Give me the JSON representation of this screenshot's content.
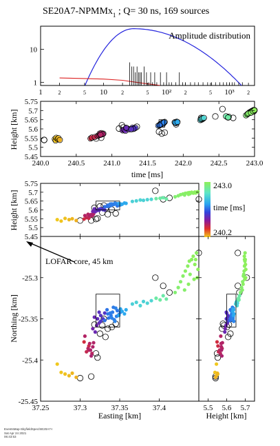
{
  "title_main": "SE20A7-NPMMx",
  "title_sub": "1",
  "title_rest": " ; Q= 30 ns, 169 sources",
  "footer": {
    "line1": "EventsMap-SkyfieldSpec/SE20A7-NPMMx",
    "line2": "Sat Apr 24 2021",
    "line3": "06:43:53"
  },
  "colors": {
    "amp_curve1": "#2222dd",
    "amp_curve2": "#dd2222",
    "marker_edge": "#000000",
    "cbar_top": "#8ef05a",
    "cbar_bottom": "#f0c81e"
  },
  "chart_data": [
    {
      "id": "amplitude",
      "type": "line",
      "title": "Amplitude distribution",
      "x_scale": "log",
      "y_scale": "log",
      "xlim": [
        1,
        2500
      ],
      "ylim": [
        0.8,
        50
      ],
      "x_tick_labels": [
        "1",
        "2",
        "5",
        "10",
        "2",
        "5",
        "10²",
        "2",
        "5",
        "10³",
        "2"
      ],
      "x_tick_values": [
        1,
        2,
        5,
        10,
        20,
        50,
        100,
        200,
        500,
        1000,
        2000
      ],
      "y_tick_labels": [
        "1",
        "10"
      ],
      "y_tick_values": [
        1,
        10
      ],
      "series": [
        {
          "kind": "curve",
          "color": "#2222dd",
          "peak_x": 30,
          "peak_y": 42,
          "start_x": 5,
          "end_x": 1600
        },
        {
          "kind": "curve",
          "color": "#dd2222",
          "x": [
            2,
            5,
            10,
            20,
            40,
            80
          ],
          "y": [
            1.35,
            1.3,
            1.25,
            1.15,
            0.95,
            0.8
          ]
        },
        {
          "kind": "histogram",
          "color": "#000000",
          "x": [
            26,
            28,
            30,
            32,
            34,
            36,
            38,
            40,
            44,
            48,
            52,
            56,
            60,
            65,
            70,
            80,
            90,
            100,
            110,
            120,
            140,
            160,
            180,
            200,
            240,
            280,
            320,
            380,
            450,
            520,
            600,
            700,
            800,
            900,
            1000,
            1100,
            1200,
            1400,
            1600
          ],
          "y": [
            4,
            3,
            3,
            2,
            3,
            2,
            2,
            2,
            3,
            2,
            1,
            2,
            1,
            2,
            1,
            2,
            1,
            2,
            1,
            1,
            1,
            2,
            1,
            1,
            1,
            1,
            1,
            1,
            1,
            1,
            1,
            1,
            1,
            1,
            1,
            1,
            1,
            1,
            1
          ]
        }
      ]
    },
    {
      "id": "height-time",
      "type": "scatter",
      "xlabel": "time [ms]",
      "ylabel": "Height [km]",
      "xlim": [
        240.0,
        243.0
      ],
      "ylim": [
        5.45,
        5.75
      ],
      "x_ticks": [
        "240.0",
        "240.5",
        "241.0",
        "241.5",
        "242.0",
        "242.5",
        "243.0"
      ],
      "y_ticks": [
        "5.45",
        "5.5",
        "5.55",
        "5.6",
        "5.65",
        "5.7",
        "5.75"
      ],
      "highlight_box": {
        "x": [
          241.66,
          241.74
        ],
        "y": [
          5.61,
          5.65
        ]
      }
    },
    {
      "id": "height-easting",
      "type": "scatter",
      "ylabel": "Height [km]",
      "ylim": [
        5.45,
        5.75
      ],
      "y_ticks": [
        "5.45",
        "5.5",
        "5.55",
        "5.6",
        "5.65",
        "5.7",
        "5.75"
      ],
      "highlight_box": {
        "x": [
          37.32,
          37.35
        ],
        "y": [
          5.6,
          5.65
        ]
      }
    },
    {
      "id": "northing-easting",
      "type": "scatter",
      "xlabel": "Easting [km]",
      "ylabel": "Northing [km]",
      "xlim": [
        37.25,
        37.45
      ],
      "ylim": [
        -25.45,
        -25.25
      ],
      "x_ticks": [
        "37.25",
        "37.3",
        "37.35",
        "37.4"
      ],
      "y_ticks": [
        "-25.3",
        "-25.35",
        "-25.4",
        "-25.45"
      ],
      "annotation": "LOFAR core, 45 km",
      "highlight_box": {
        "x": [
          37.32,
          37.35
        ],
        "y": [
          -25.36,
          -25.32
        ]
      }
    },
    {
      "id": "northing-height",
      "type": "scatter",
      "xlabel": "Height [km]",
      "xlim": [
        5.45,
        5.75
      ],
      "x_ticks": [
        "5.5",
        "5.6",
        "5.7"
      ],
      "highlight_box": {
        "x": [
          5.6,
          5.65
        ],
        "y": [
          -25.36,
          -25.32
        ]
      }
    },
    {
      "id": "colorbar",
      "type": "heatmap",
      "label": "time [ms]",
      "range": [
        240.2,
        243.0
      ],
      "tick_labels": [
        "243.0",
        "240.2"
      ]
    }
  ],
  "sources": [
    {
      "t": 240.2,
      "e": 37.271,
      "n": -25.405,
      "h": 5.545
    },
    {
      "t": 240.21,
      "e": 37.276,
      "n": -25.415,
      "h": 5.537
    },
    {
      "t": 240.22,
      "e": 37.281,
      "n": -25.417,
      "h": 5.552
    },
    {
      "t": 240.24,
      "e": 37.286,
      "n": -25.419,
      "h": 5.545
    },
    {
      "t": 240.25,
      "e": 37.29,
      "n": -25.416,
      "h": 5.55
    },
    {
      "t": 240.27,
      "e": 37.295,
      "n": -25.421,
      "h": 5.54
    },
    {
      "t": 240.7,
      "e": 37.305,
      "n": -25.378,
      "h": 5.548
    },
    {
      "t": 240.72,
      "e": 37.311,
      "n": -25.383,
      "h": 5.553
    },
    {
      "t": 240.76,
      "e": 37.308,
      "n": -25.39,
      "h": 5.556
    },
    {
      "t": 240.8,
      "e": 37.311,
      "n": -25.388,
      "h": 5.562
    },
    {
      "t": 240.82,
      "e": 37.315,
      "n": -25.392,
      "h": 5.566
    },
    {
      "t": 240.84,
      "e": 37.312,
      "n": -25.38,
      "h": 5.57
    },
    {
      "t": 240.86,
      "e": 37.316,
      "n": -25.384,
      "h": 5.571
    },
    {
      "t": 240.88,
      "e": 37.314,
      "n": -25.395,
      "h": 5.574
    },
    {
      "t": 240.83,
      "e": 37.31,
      "n": -25.386,
      "h": 5.575
    },
    {
      "t": 240.85,
      "e": 37.317,
      "n": -25.379,
      "h": 5.577
    },
    {
      "t": 240.87,
      "e": 37.313,
      "n": -25.388,
      "h": 5.572
    },
    {
      "t": 240.84,
      "e": 37.306,
      "n": -25.371,
      "h": 5.568
    },
    {
      "t": 241.15,
      "e": 37.316,
      "n": -25.362,
      "h": 5.592
    },
    {
      "t": 241.17,
      "e": 37.321,
      "n": -25.358,
      "h": 5.596
    },
    {
      "t": 241.19,
      "e": 37.319,
      "n": -25.366,
      "h": 5.59
    },
    {
      "t": 241.21,
      "e": 37.324,
      "n": -25.355,
      "h": 5.604
    },
    {
      "t": 241.24,
      "e": 37.322,
      "n": -25.35,
      "h": 5.598
    },
    {
      "t": 241.2,
      "e": 37.318,
      "n": -25.348,
      "h": 5.606
    },
    {
      "t": 241.29,
      "e": 37.326,
      "n": -25.346,
      "h": 5.607
    },
    {
      "t": 241.31,
      "e": 37.329,
      "n": -25.35,
      "h": 5.601
    },
    {
      "t": 241.33,
      "e": 37.326,
      "n": -25.353,
      "h": 5.606
    },
    {
      "t": 241.3,
      "e": 37.331,
      "n": -25.343,
      "h": 5.6
    },
    {
      "t": 241.27,
      "e": 37.324,
      "n": -25.342,
      "h": 5.598
    },
    {
      "t": 241.65,
      "e": 37.331,
      "n": -25.352,
      "h": 5.618
    },
    {
      "t": 241.67,
      "e": 37.336,
      "n": -25.349,
      "h": 5.621
    },
    {
      "t": 241.68,
      "e": 37.335,
      "n": -25.344,
      "h": 5.627
    },
    {
      "t": 241.69,
      "e": 37.339,
      "n": -25.346,
      "h": 5.625
    },
    {
      "t": 241.7,
      "e": 37.341,
      "n": -25.342,
      "h": 5.63
    },
    {
      "t": 241.71,
      "e": 37.343,
      "n": -25.351,
      "h": 5.632
    },
    {
      "t": 241.72,
      "e": 37.346,
      "n": -25.347,
      "h": 5.635
    },
    {
      "t": 241.73,
      "e": 37.34,
      "n": -25.349,
      "h": 5.634
    },
    {
      "t": 241.74,
      "e": 37.344,
      "n": -25.353,
      "h": 5.638
    },
    {
      "t": 241.68,
      "e": 37.347,
      "n": -25.34,
      "h": 5.623
    },
    {
      "t": 241.69,
      "e": 37.349,
      "n": -25.345,
      "h": 5.627
    },
    {
      "t": 241.71,
      "e": 37.338,
      "n": -25.343,
      "h": 5.633
    },
    {
      "t": 241.7,
      "e": 37.342,
      "n": -25.336,
      "h": 5.631
    },
    {
      "t": 241.72,
      "e": 37.351,
      "n": -25.342,
      "h": 5.629
    },
    {
      "t": 241.73,
      "e": 37.345,
      "n": -25.337,
      "h": 5.636
    },
    {
      "t": 241.67,
      "e": 37.334,
      "n": -25.339,
      "h": 5.62
    },
    {
      "t": 241.88,
      "e": 37.349,
      "n": -25.346,
      "h": 5.636
    },
    {
      "t": 241.9,
      "e": 37.353,
      "n": -25.341,
      "h": 5.632
    },
    {
      "t": 241.91,
      "e": 37.356,
      "n": -25.344,
      "h": 5.639
    },
    {
      "t": 241.89,
      "e": 37.351,
      "n": -25.338,
      "h": 5.634
    },
    {
      "t": 241.92,
      "e": 37.358,
      "n": -25.339,
      "h": 5.637
    },
    {
      "t": 242.24,
      "e": 37.366,
      "n": -25.332,
      "h": 5.648
    },
    {
      "t": 242.26,
      "e": 37.371,
      "n": -25.33,
      "h": 5.651
    },
    {
      "t": 242.28,
      "e": 37.376,
      "n": -25.334,
      "h": 5.656
    },
    {
      "t": 242.25,
      "e": 37.38,
      "n": -25.329,
      "h": 5.654
    },
    {
      "t": 242.27,
      "e": 37.385,
      "n": -25.331,
      "h": 5.658
    },
    {
      "t": 242.29,
      "e": 37.39,
      "n": -25.328,
      "h": 5.66
    },
    {
      "t": 242.62,
      "e": 37.396,
      "n": -25.325,
      "h": 5.664
    },
    {
      "t": 242.64,
      "e": 37.401,
      "n": -25.327,
      "h": 5.666
    },
    {
      "t": 242.6,
      "e": 37.405,
      "n": -25.322,
      "h": 5.669
    },
    {
      "t": 242.63,
      "e": 37.409,
      "n": -25.326,
      "h": 5.662
    },
    {
      "t": 242.88,
      "e": 37.42,
      "n": -25.318,
      "h": 5.674
    },
    {
      "t": 242.9,
      "e": 37.424,
      "n": -25.312,
      "h": 5.68
    },
    {
      "t": 242.92,
      "e": 37.427,
      "n": -25.305,
      "h": 5.686
    },
    {
      "t": 242.93,
      "e": 37.43,
      "n": -25.298,
      "h": 5.69
    },
    {
      "t": 242.95,
      "e": 37.433,
      "n": -25.292,
      "h": 5.694
    },
    {
      "t": 242.96,
      "e": 37.436,
      "n": -25.286,
      "h": 5.696
    },
    {
      "t": 242.97,
      "e": 37.438,
      "n": -25.28,
      "h": 5.698
    },
    {
      "t": 242.98,
      "e": 37.441,
      "n": -25.278,
      "h": 5.7
    },
    {
      "t": 242.99,
      "e": 37.443,
      "n": -25.274,
      "h": 5.695
    },
    {
      "t": 243.0,
      "e": 37.445,
      "n": -25.284,
      "h": 5.701
    },
    {
      "t": 242.94,
      "e": 37.439,
      "n": -25.296,
      "h": 5.692
    },
    {
      "t": 242.96,
      "e": 37.444,
      "n": -25.302,
      "h": 5.697
    },
    {
      "t": 242.91,
      "e": 37.432,
      "n": -25.315,
      "h": 5.684
    },
    {
      "t": 242.97,
      "e": 37.447,
      "n": -25.27,
      "h": 5.699
    },
    {
      "t": 242.99,
      "e": 37.449,
      "n": -25.29,
      "h": 5.703
    },
    {
      "t": 242.95,
      "e": 37.437,
      "n": -25.308,
      "h": 5.688
    },
    {
      "t": 242.98,
      "e": 37.446,
      "n": -25.278,
      "h": 5.696
    },
    {
      "t": 243.0,
      "e": 37.448,
      "n": -25.3,
      "h": 5.702
    }
  ],
  "unassigned_sources": [
    {
      "t": 240.05,
      "e": 37.3,
      "n": -25.422,
      "h": 5.54
    },
    {
      "t": 240.85,
      "e": 37.322,
      "n": -25.397,
      "h": 5.552
    },
    {
      "t": 240.78,
      "e": 37.32,
      "n": -25.392,
      "h": 5.548
    },
    {
      "t": 241.14,
      "e": 37.325,
      "n": -25.368,
      "h": 5.62
    },
    {
      "t": 241.16,
      "e": 37.332,
      "n": -25.372,
      "h": 5.608
    },
    {
      "t": 241.35,
      "e": 37.318,
      "n": -25.357,
      "h": 5.612
    },
    {
      "t": 241.66,
      "e": 37.328,
      "n": -25.358,
      "h": 5.585
    },
    {
      "t": 241.7,
      "e": 37.335,
      "n": -25.362,
      "h": 5.575
    },
    {
      "t": 241.74,
      "e": 37.345,
      "n": -25.356,
      "h": 5.58
    },
    {
      "t": 242.25,
      "e": 37.405,
      "n": -25.31,
      "h": 5.66
    },
    {
      "t": 242.45,
      "e": 37.413,
      "n": -25.318,
      "h": 5.668
    },
    {
      "t": 242.55,
      "e": 37.395,
      "n": -25.3,
      "h": 5.708
    },
    {
      "t": 242.7,
      "e": 37.45,
      "n": -25.27,
      "h": 5.66
    },
    {
      "t": 240.05,
      "e": 37.314,
      "n": -25.42,
      "h": 5.54
    },
    {
      "t": 241.9,
      "e": 37.33,
      "n": -25.35,
      "h": 5.625
    },
    {
      "t": 241.1,
      "e": 37.34,
      "n": -25.36,
      "h": 5.602
    }
  ]
}
